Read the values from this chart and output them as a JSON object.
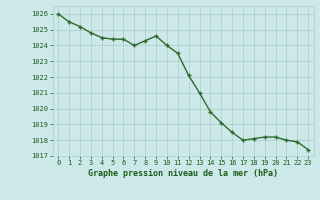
{
  "x": [
    0,
    1,
    2,
    3,
    4,
    5,
    6,
    7,
    8,
    9,
    10,
    11,
    12,
    13,
    14,
    15,
    16,
    17,
    18,
    19,
    20,
    21,
    22,
    23
  ],
  "y": [
    1026.0,
    1025.5,
    1025.2,
    1024.8,
    1024.5,
    1024.4,
    1024.4,
    1024.0,
    1024.3,
    1024.6,
    1024.0,
    1023.5,
    1022.1,
    1021.0,
    1019.8,
    1019.1,
    1018.5,
    1018.0,
    1018.1,
    1018.2,
    1018.2,
    1018.0,
    1017.9,
    1017.4
  ],
  "line_color": "#2d6a2d",
  "marker": "+",
  "bg_color": "#cce8e8",
  "grid_color": "#aacaca",
  "xlabel": "Graphe pression niveau de la mer (hPa)",
  "xlabel_color": "#1a5c1a",
  "tick_color": "#1a5c1a",
  "ylim": [
    1017,
    1026.5
  ],
  "xlim": [
    -0.5,
    23.5
  ],
  "yticks": [
    1017,
    1018,
    1019,
    1020,
    1021,
    1022,
    1023,
    1024,
    1025,
    1026
  ],
  "xticks": [
    0,
    1,
    2,
    3,
    4,
    5,
    6,
    7,
    8,
    9,
    10,
    11,
    12,
    13,
    14,
    15,
    16,
    17,
    18,
    19,
    20,
    21,
    22,
    23
  ],
  "xtick_labels": [
    "0",
    "1",
    "2",
    "3",
    "4",
    "5",
    "6",
    "7",
    "8",
    "9",
    "10",
    "11",
    "12",
    "13",
    "14",
    "15",
    "16",
    "17",
    "18",
    "19",
    "20",
    "21",
    "22",
    "23"
  ],
  "marker_size": 3,
  "line_width": 1.0,
  "tick_fontsize": 5.0,
  "xlabel_fontsize": 6.0
}
